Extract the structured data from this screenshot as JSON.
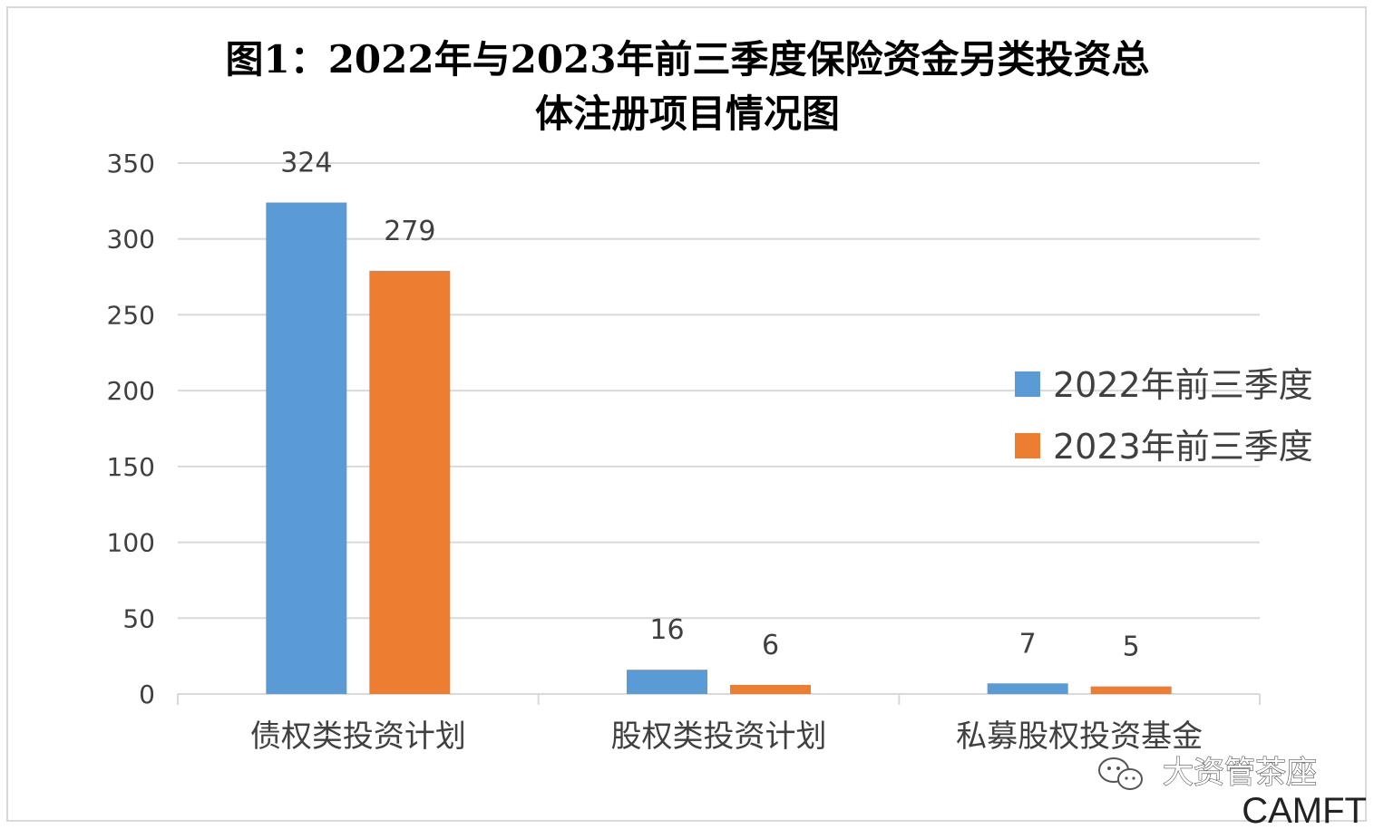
{
  "chart_data": {
    "type": "bar",
    "title_lines": [
      "图1：2022年与2023年前三季度保险资金另类投资总",
      "体注册项目情况图"
    ],
    "categories": [
      "债权类投资计划",
      "股权类投资计划",
      "私募股权投资基金"
    ],
    "series": [
      {
        "name": "2022年前三季度",
        "values": [
          324,
          16,
          7
        ],
        "color": "#5b9bd5"
      },
      {
        "name": "2023年前三季度",
        "values": [
          279,
          6,
          5
        ],
        "color": "#ed7d31"
      }
    ],
    "ylim": [
      0,
      350
    ],
    "yticks": [
      0,
      50,
      100,
      150,
      200,
      250,
      300,
      350
    ],
    "grid": true,
    "legend_position": "right",
    "data_labels": true
  },
  "watermark": {
    "text": "大资管茶座",
    "icon": "wechat-icon",
    "brand": "CAMFT"
  }
}
